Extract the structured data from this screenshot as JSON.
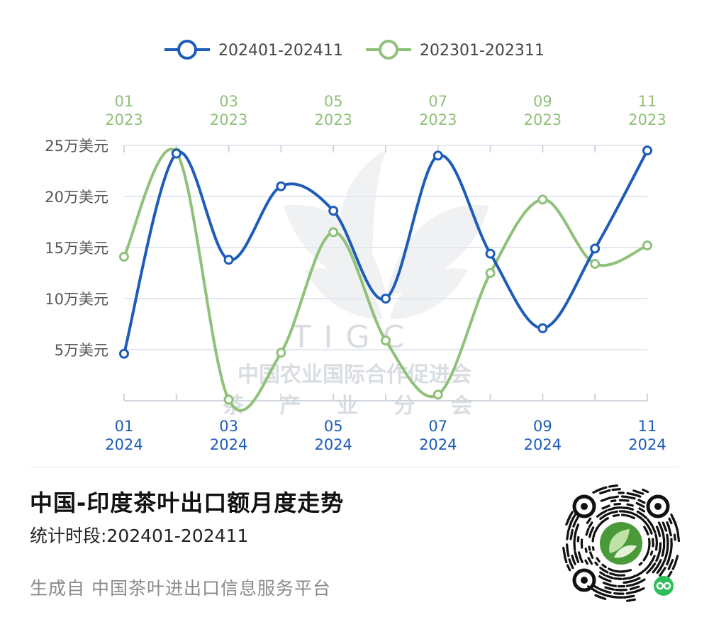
{
  "chart_data": {
    "type": "line",
    "title": "中国-印度茶叶出口额月度走势",
    "subtitle": "统计时段:202401-202411",
    "source": "生成自 中国茶叶进出口信息服务平台",
    "y_tick_labels": [
      "5万美元",
      "10万美元",
      "15万美元",
      "20万美元",
      "25万美元"
    ],
    "y_tick_values": [
      5,
      10,
      15,
      20,
      25
    ],
    "ylim": [
      0,
      25
    ],
    "x_bottom_labels": [
      {
        "month": "01",
        "year": "2024"
      },
      {
        "month": "03",
        "year": "2024"
      },
      {
        "month": "05",
        "year": "2024"
      },
      {
        "month": "07",
        "year": "2024"
      },
      {
        "month": "09",
        "year": "2024"
      },
      {
        "month": "11",
        "year": "2024"
      }
    ],
    "x_top_labels": [
      {
        "month": "01",
        "year": "2023"
      },
      {
        "month": "03",
        "year": "2023"
      },
      {
        "month": "05",
        "year": "2023"
      },
      {
        "month": "07",
        "year": "2023"
      },
      {
        "month": "09",
        "year": "2023"
      },
      {
        "month": "11",
        "year": "2023"
      }
    ],
    "grid": true,
    "legend_position": "top-center",
    "series": [
      {
        "name": "202401-202411",
        "color": "#1d5cb8",
        "months": [
          "2024-01",
          "2024-02",
          "2024-03",
          "2024-04",
          "2024-05",
          "2024-06",
          "2024-07",
          "2024-08",
          "2024-09",
          "2024-10",
          "2024-11"
        ],
        "values": [
          4.6,
          24.2,
          13.8,
          21.0,
          18.6,
          10.0,
          24.0,
          14.4,
          7.1,
          14.9,
          24.5
        ]
      },
      {
        "name": "202301-202311",
        "color": "#8fc17a",
        "months": [
          "2023-01",
          "2023-02",
          "2023-03",
          "2023-04",
          "2023-05",
          "2023-06",
          "2023-07",
          "2023-08",
          "2023-09",
          "2023-10",
          "2023-11"
        ],
        "values": [
          14.1,
          24.3,
          0.1,
          4.7,
          16.5,
          5.9,
          0.6,
          12.5,
          19.7,
          13.4,
          15.2
        ]
      }
    ]
  },
  "watermark": {
    "org_abbr": "TIGC",
    "org_name": "中国农业国际合作促进会",
    "branch": "茶 产 业 分 会"
  },
  "qr": {
    "icon": "wechat-mini-program-qr-code",
    "logo_icon": "tea-leaf-logo",
    "badge_icon": "mini-program-badge-icon",
    "accent": "#4a9a3a"
  }
}
